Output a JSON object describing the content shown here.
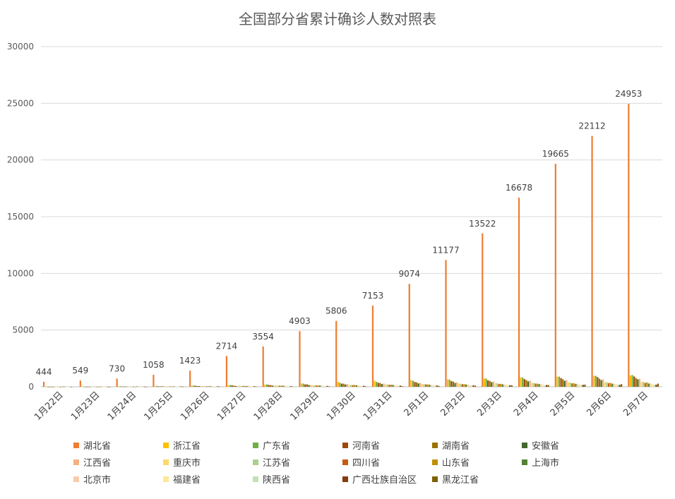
{
  "chart_data": {
    "type": "bar",
    "title": "全国部分省累计确诊人数对照表",
    "xlabel": "",
    "ylabel": "",
    "ylim": [
      0,
      30000
    ],
    "yticks": [
      0,
      5000,
      10000,
      15000,
      20000,
      25000,
      30000
    ],
    "grid": true,
    "legend_position": "bottom",
    "categories": [
      "1月22日",
      "1月23日",
      "1月24日",
      "1月25日",
      "1月26日",
      "1月27日",
      "1月28日",
      "1月29日",
      "1月30日",
      "1月31日",
      "2月1日",
      "2月2日",
      "2月3日",
      "2月4日",
      "2月5日",
      "2月6日",
      "2月7日"
    ],
    "series": [
      {
        "name": "湖北省",
        "color": "#ED7D31",
        "values": [
          444,
          549,
          730,
          1058,
          1423,
          2714,
          3554,
          4903,
          5806,
          7153,
          9074,
          11177,
          13522,
          16678,
          19665,
          22112,
          24953
        ]
      },
      {
        "name": "浙江省",
        "color": "#FFC000",
        "values": [
          10,
          27,
          43,
          62,
          104,
          128,
          173,
          296,
          428,
          538,
          599,
          661,
          724,
          829,
          895,
          954,
          1006
        ]
      },
      {
        "name": "广东省",
        "color": "#70AD47",
        "values": [
          17,
          26,
          53,
          78,
          111,
          151,
          207,
          277,
          354,
          436,
          535,
          632,
          725,
          813,
          895,
          970,
          1034
        ]
      },
      {
        "name": "河南省",
        "color": "#9E480E",
        "values": [
          1,
          5,
          9,
          32,
          83,
          128,
          168,
          206,
          278,
          352,
          422,
          493,
          566,
          675,
          764,
          851,
          914
        ]
      },
      {
        "name": "湖南省",
        "color": "#997300",
        "values": [
          4,
          9,
          24,
          43,
          69,
          100,
          143,
          221,
          277,
          332,
          389,
          463,
          521,
          593,
          661,
          711,
          772
        ]
      },
      {
        "name": "安徽省",
        "color": "#43682B",
        "values": [
          1,
          9,
          15,
          39,
          60,
          70,
          106,
          152,
          200,
          237,
          297,
          340,
          408,
          480,
          530,
          591,
          665
        ]
      },
      {
        "name": "江西省",
        "color": "#F4B183",
        "values": [
          2,
          7,
          18,
          36,
          48,
          72,
          109,
          162,
          240,
          286,
          333,
          391,
          476,
          548,
          600,
          661,
          698
        ]
      },
      {
        "name": "重庆市",
        "color": "#FFD966",
        "values": [
          6,
          9,
          27,
          57,
          75,
          110,
          132,
          147,
          182,
          211,
          247,
          300,
          337,
          366,
          389,
          411,
          426
        ]
      },
      {
        "name": "江苏省",
        "color": "#A9D18E",
        "values": [
          1,
          9,
          18,
          33,
          47,
          70,
          99,
          129,
          168,
          202,
          236,
          271,
          308,
          341,
          373,
          408,
          439
        ]
      },
      {
        "name": "四川省",
        "color": "#C55A11",
        "values": [
          5,
          8,
          15,
          28,
          44,
          69,
          90,
          108,
          142,
          177,
          207,
          231,
          254,
          282,
          301,
          321,
          344
        ]
      },
      {
        "name": "山东省",
        "color": "#BF9000",
        "values": [
          2,
          6,
          15,
          27,
          46,
          75,
          95,
          130,
          158,
          184,
          206,
          230,
          259,
          275,
          307,
          347,
          386
        ]
      },
      {
        "name": "上海市",
        "color": "#548235",
        "values": [
          16,
          20,
          33,
          40,
          53,
          66,
          96,
          112,
          135,
          169,
          182,
          203,
          219,
          243,
          257,
          277,
          286
        ]
      },
      {
        "name": "北京市",
        "color": "#F8CBAD",
        "values": [
          10,
          14,
          36,
          41,
          68,
          80,
          91,
          111,
          114,
          139,
          168,
          191,
          212,
          228,
          253,
          274,
          297
        ]
      },
      {
        "name": "福建省",
        "color": "#FFE699",
        "values": [
          1,
          5,
          10,
          18,
          35,
          59,
          80,
          84,
          101,
          120,
          144,
          159,
          179,
          194,
          205,
          215,
          224
        ]
      },
      {
        "name": "陕西省",
        "color": "#C5E0B4",
        "values": [
          0,
          3,
          5,
          15,
          22,
          35,
          46,
          56,
          63,
          87,
          101,
          116,
          128,
          142,
          165,
          173,
          184
        ]
      },
      {
        "name": "广西壮族自治区",
        "color": "#843C0C",
        "values": [
          2,
          13,
          23,
          36,
          46,
          51,
          58,
          78,
          87,
          100,
          111,
          127,
          139,
          150,
          168,
          172,
          183
        ]
      },
      {
        "name": "黑龙江省",
        "color": "#7F6000",
        "values": [
          0,
          1,
          2,
          9,
          15,
          21,
          33,
          38,
          44,
          59,
          80,
          95,
          121,
          155,
          190,
          227,
          277
        ]
      }
    ],
    "data_labels": {
      "series": "湖北省",
      "values": [
        444,
        549,
        730,
        1058,
        1423,
        2714,
        3554,
        4903,
        5806,
        7153,
        9074,
        11177,
        13522,
        16678,
        19665,
        22112,
        24953
      ]
    }
  }
}
